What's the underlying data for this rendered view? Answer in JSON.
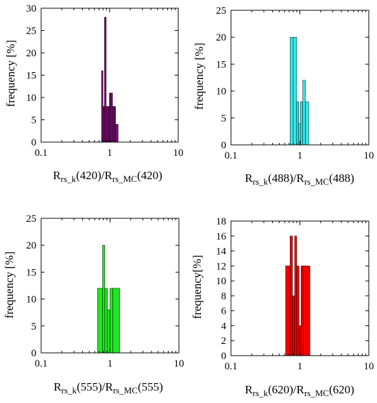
{
  "figure": {
    "panels": [
      {
        "xlabel_main": "R",
        "xlabel_sub": "rs_k",
        "xlabel_mid": "(420)/R",
        "xlabel_sub2": "rs_MC",
        "xlabel_end": "(420)",
        "ylabel": "frequency [%]"
      },
      {
        "xlabel_main": "R",
        "xlabel_sub": "rs_k",
        "xlabel_mid": "(488)/R",
        "xlabel_sub2": "rs_MC",
        "xlabel_end": "(488)",
        "ylabel": "frequency [%]"
      },
      {
        "xlabel_main": "R",
        "xlabel_sub": "rs_k",
        "xlabel_mid": "(555)/R",
        "xlabel_sub2": "rs_MC",
        "xlabel_end": "(555)",
        "ylabel": "frequency [%]"
      },
      {
        "xlabel_main": "R",
        "xlabel_sub": "rs_k",
        "xlabel_mid": "(620)/R",
        "xlabel_sub2": "rs_MC",
        "xlabel_end": "(620)",
        "ylabel": "frequency[%]"
      }
    ]
  },
  "chart_data": [
    {
      "type": "bar",
      "xscale": "log",
      "xlim": [
        0.1,
        10
      ],
      "ylim": [
        0,
        30
      ],
      "yticks": [
        0,
        5,
        10,
        15,
        20,
        25,
        30
      ],
      "xticks": [
        0.1,
        1,
        10
      ],
      "xtick_labels": [
        "0.1",
        "1",
        "10"
      ],
      "ytick_labels": [
        "0",
        "5",
        "10",
        "15",
        "20",
        "25",
        "30"
      ],
      "color": "#7a0a73",
      "bins": [
        {
          "x0": 0.76,
          "x1": 0.8,
          "value": 16
        },
        {
          "x0": 0.8,
          "x1": 0.84,
          "value": 8
        },
        {
          "x0": 0.84,
          "x1": 0.89,
          "value": 28
        },
        {
          "x0": 0.89,
          "x1": 0.94,
          "value": 8
        },
        {
          "x0": 0.94,
          "x1": 0.99,
          "value": 8
        },
        {
          "x0": 0.99,
          "x1": 1.04,
          "value": 11
        },
        {
          "x0": 1.04,
          "x1": 1.1,
          "value": 11
        },
        {
          "x0": 1.1,
          "x1": 1.16,
          "value": 8
        },
        {
          "x0": 1.16,
          "x1": 1.22,
          "value": 8
        },
        {
          "x0": 1.22,
          "x1": 1.33,
          "value": 4
        }
      ]
    },
    {
      "type": "bar",
      "xscale": "log",
      "xlim": [
        0.1,
        10
      ],
      "ylim": [
        0,
        25
      ],
      "yticks": [
        0,
        5,
        10,
        15,
        20,
        25
      ],
      "xticks": [
        0.1,
        1,
        10
      ],
      "xtick_labels": [
        "0.1",
        "1",
        "10"
      ],
      "ytick_labels": [
        "0",
        "5",
        "10",
        "15",
        "20",
        "25"
      ],
      "color": "#33e6e6",
      "bins": [
        {
          "x0": 0.72,
          "x1": 0.8,
          "value": 20
        },
        {
          "x0": 0.8,
          "x1": 0.9,
          "value": 20
        },
        {
          "x0": 0.9,
          "x1": 0.96,
          "value": 8
        },
        {
          "x0": 0.96,
          "x1": 1.02,
          "value": 4
        },
        {
          "x0": 1.02,
          "x1": 1.1,
          "value": 8
        },
        {
          "x0": 1.1,
          "x1": 1.2,
          "value": 12
        },
        {
          "x0": 1.2,
          "x1": 1.34,
          "value": 8
        }
      ]
    },
    {
      "type": "bar",
      "xscale": "log",
      "xlim": [
        0.1,
        10
      ],
      "ylim": [
        0,
        25
      ],
      "yticks": [
        0,
        5,
        10,
        15,
        20,
        25
      ],
      "xticks": [
        0.1,
        1,
        10
      ],
      "xtick_labels": [
        "0.1",
        "1",
        "10"
      ],
      "ytick_labels": [
        "0",
        "5",
        "10",
        "15",
        "20",
        "25"
      ],
      "color": "#22e622",
      "bins": [
        {
          "x0": 0.66,
          "x1": 0.78,
          "value": 12
        },
        {
          "x0": 0.78,
          "x1": 0.84,
          "value": 20
        },
        {
          "x0": 0.84,
          "x1": 0.92,
          "value": 12
        },
        {
          "x0": 0.92,
          "x1": 1.0,
          "value": 8
        },
        {
          "x0": 1.0,
          "x1": 1.1,
          "value": 12
        },
        {
          "x0": 1.1,
          "x1": 1.38,
          "value": 12
        }
      ]
    },
    {
      "type": "bar",
      "xscale": "log",
      "xlim": [
        0.1,
        10
      ],
      "ylim": [
        0,
        18
      ],
      "yticks": [
        0,
        2,
        4,
        6,
        8,
        10,
        12,
        14,
        16,
        18
      ],
      "xticks": [
        0.1,
        1,
        10
      ],
      "xtick_labels": [
        "0.1",
        "1",
        "10"
      ],
      "ytick_labels": [
        "0",
        "2",
        "4",
        "6",
        "8",
        "10",
        "12",
        "14",
        "16",
        "18"
      ],
      "color": "#f00000",
      "bins": [
        {
          "x0": 0.62,
          "x1": 0.72,
          "value": 12
        },
        {
          "x0": 0.72,
          "x1": 0.78,
          "value": 16
        },
        {
          "x0": 0.78,
          "x1": 0.84,
          "value": 8
        },
        {
          "x0": 0.84,
          "x1": 0.9,
          "value": 16
        },
        {
          "x0": 0.9,
          "x1": 0.97,
          "value": 12
        },
        {
          "x0": 0.97,
          "x1": 1.04,
          "value": 4
        },
        {
          "x0": 1.04,
          "x1": 1.12,
          "value": 12
        },
        {
          "x0": 1.12,
          "x1": 1.4,
          "value": 12
        }
      ]
    }
  ]
}
